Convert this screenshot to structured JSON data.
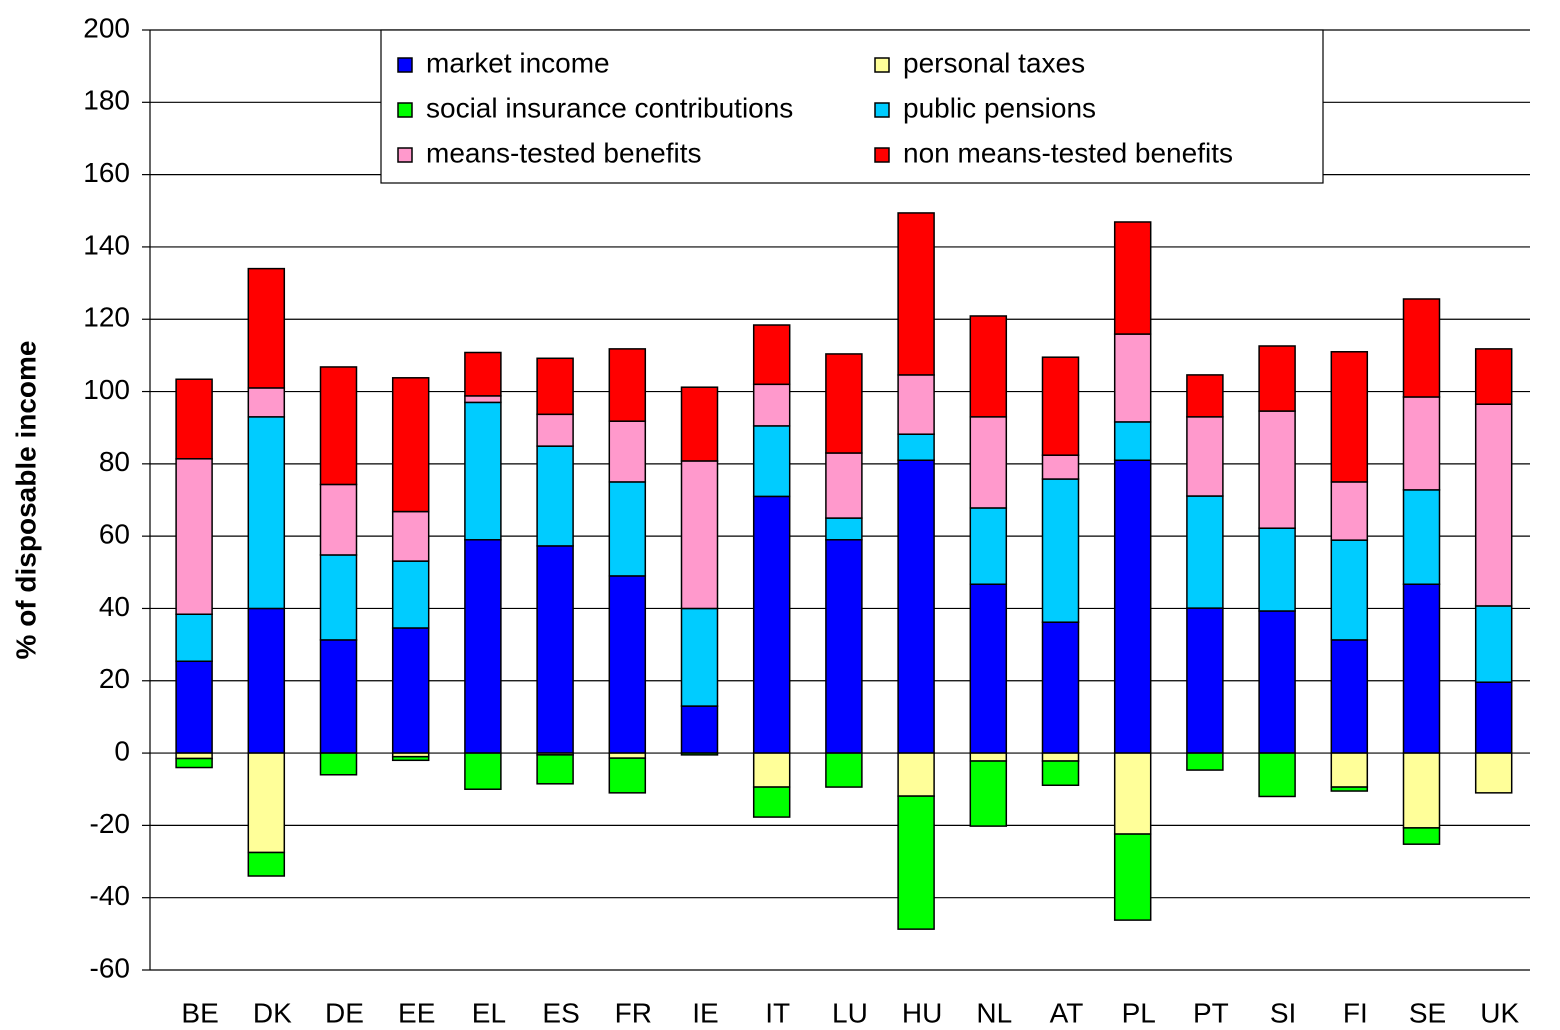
{
  "chart_data": {
    "type": "stacked_bar",
    "y_label": "% of disposable income",
    "categories": [
      "BE",
      "DK",
      "DE",
      "EE",
      "EL",
      "ES",
      "FR",
      "IE",
      "IT",
      "LU",
      "HU",
      "NL",
      "AT",
      "PL",
      "PT",
      "SI",
      "FI",
      "SE",
      "UK"
    ],
    "series": [
      {
        "name": "market income",
        "color": "#0000ff",
        "values": [
          25.4,
          40,
          31.3,
          34.6,
          59,
          57.3,
          49,
          13,
          71,
          59,
          81,
          46.7,
          36.2,
          81,
          40.1,
          39.3,
          31.3,
          46.7,
          19.6
        ]
      },
      {
        "name": "personal taxes",
        "color": "#ffff99",
        "values": [
          -1.5,
          -27.5,
          0,
          -1,
          0,
          -0.5,
          -1.4,
          0,
          -9.4,
          0,
          -11.9,
          -2.2,
          -2.2,
          -22.4,
          0,
          0,
          -9.4,
          -20.7,
          -11
        ]
      },
      {
        "name": "social insurance contributions",
        "color": "#00ff00",
        "values": [
          -2.5,
          -6.5,
          -6,
          -1,
          -10,
          -8,
          -9.6,
          -0.5,
          -8.3,
          -9.4,
          -36.8,
          -18,
          -6.7,
          -23.8,
          -4.7,
          -12,
          -1.1,
          -4.5,
          0
        ]
      },
      {
        "name": "public pensions",
        "color": "#00ccff",
        "values": [
          13,
          53,
          23.5,
          18.5,
          38,
          27.6,
          26,
          27,
          19.5,
          6,
          7.2,
          21.1,
          39.6,
          10.6,
          31,
          22.9,
          27.6,
          26.1,
          21.1
        ]
      },
      {
        "name": "means-tested benefits",
        "color": "#ff99cc",
        "values": [
          43,
          8,
          19.5,
          13.7,
          1.8,
          8.8,
          16.8,
          40.8,
          11.5,
          18,
          16.4,
          25.2,
          6.6,
          24.3,
          21.9,
          32.4,
          16.1,
          25.7,
          55.8
        ]
      },
      {
        "name": "non means-tested benefits",
        "color": "#ff0000",
        "values": [
          22,
          33,
          32.5,
          37,
          12,
          15.5,
          20,
          20.4,
          16.4,
          27.4,
          44.8,
          27.9,
          27.1,
          31,
          11.6,
          18,
          36,
          27.1,
          15.3
        ]
      }
    ],
    "ylim": [
      -60,
      200
    ],
    "yticks": [
      -60,
      -40,
      -20,
      0,
      20,
      40,
      60,
      80,
      100,
      120,
      140,
      160,
      180,
      200
    ],
    "grid": true
  }
}
